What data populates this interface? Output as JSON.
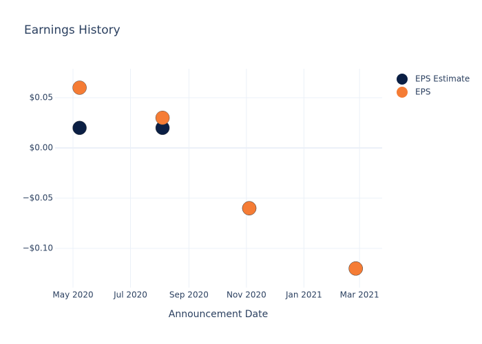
{
  "chart_data": {
    "type": "scatter",
    "title": "Earnings History",
    "x_label": "Announcement Date",
    "x": [
      "2020-05-08",
      "2020-08-04",
      "2020-11-04",
      "2021-02-25"
    ],
    "series": [
      {
        "name": "EPS Estimate",
        "color": "#0b1f44",
        "values": [
          0.02,
          0.02,
          -0.06,
          -0.12
        ]
      },
      {
        "name": "EPS",
        "color": "#f57c35",
        "values": [
          0.06,
          0.03,
          -0.06,
          -0.12
        ]
      }
    ],
    "xlim": [
      "2020-04-12",
      "2021-03-25"
    ],
    "xticks": [
      {
        "value": "2020-05-01",
        "label": "May 2020"
      },
      {
        "value": "2020-07-01",
        "label": "Jul 2020"
      },
      {
        "value": "2020-09-01",
        "label": "Sep 2020"
      },
      {
        "value": "2020-11-01",
        "label": "Nov 2020"
      },
      {
        "value": "2021-01-01",
        "label": "Jan 2021"
      },
      {
        "value": "2021-03-01",
        "label": "Mar 2021"
      }
    ],
    "ylim": [
      -0.139,
      0.0788
    ],
    "yticks": [
      {
        "value": -0.1,
        "label": "−$0.10"
      },
      {
        "value": -0.05,
        "label": "−$0.05"
      },
      {
        "value": 0,
        "label": "$0.00"
      },
      {
        "value": 0.05,
        "label": "$0.05"
      }
    ],
    "grid": true,
    "legend": "right"
  }
}
